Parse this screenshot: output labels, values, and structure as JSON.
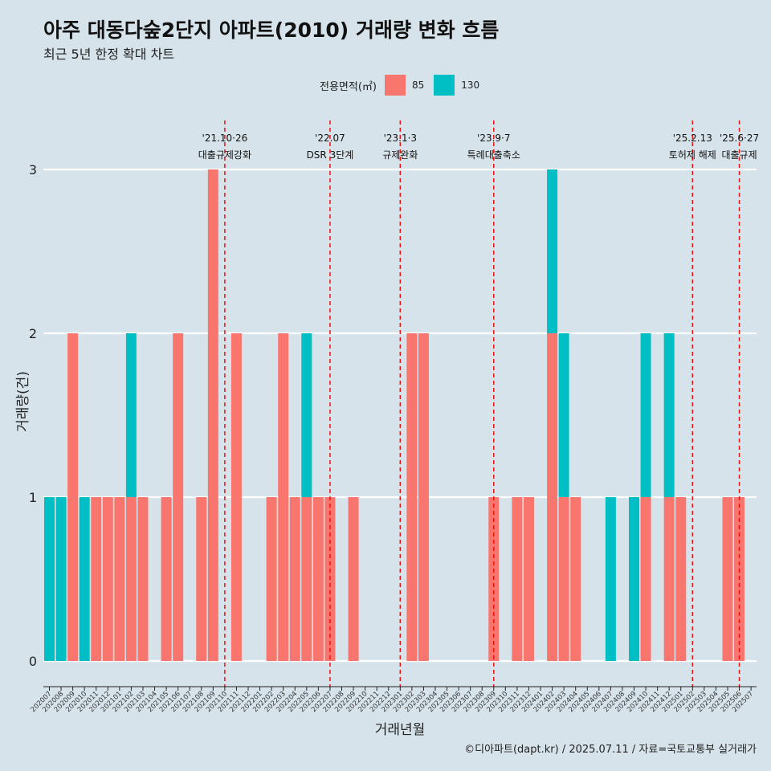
{
  "title": "아주 대동다숲2단지 아파트(2010) 거래량 변화 흐름",
  "subtitle": "최근 5년 한정 확대 차트",
  "caption": "©디아파트(dapt.kr) / 2025.07.11 / 자료=국토교통부 실거래가",
  "legend": {
    "title": "전용면적(㎡)",
    "items": [
      {
        "label": "85",
        "color": "#f8766d"
      },
      {
        "label": "130",
        "color": "#00bfc4"
      }
    ]
  },
  "chart_data": {
    "type": "bar",
    "xlabel": "거래년월",
    "ylabel": "거래량(건)",
    "ylim": [
      0,
      3
    ],
    "yticks": [
      0,
      1,
      2,
      3
    ],
    "grid": true,
    "legend_position": "top",
    "categories": [
      "202007",
      "202008",
      "202009",
      "202010",
      "202011",
      "202012",
      "202101",
      "202102",
      "202103",
      "202104",
      "202105",
      "202106",
      "202107",
      "202108",
      "202109",
      "202110",
      "202111",
      "202112",
      "202201",
      "202202",
      "202203",
      "202204",
      "202205",
      "202206",
      "202207",
      "202208",
      "202209",
      "202210",
      "202211",
      "202212",
      "202301",
      "202302",
      "202303",
      "202304",
      "202305",
      "202306",
      "202307",
      "202308",
      "202309",
      "202310",
      "202311",
      "202312",
      "202401",
      "202402",
      "202403",
      "202404",
      "202405",
      "202406",
      "202407",
      "202408",
      "202409",
      "202410",
      "202411",
      "202412",
      "202501",
      "202502",
      "202503",
      "202504",
      "202505",
      "202506",
      "202507"
    ],
    "series": [
      {
        "name": "85",
        "color": "#f8766d",
        "values": [
          0,
          0,
          2,
          0,
          1,
          1,
          1,
          1,
          1,
          0,
          1,
          2,
          0,
          1,
          3,
          0,
          2,
          0,
          0,
          1,
          2,
          1,
          1,
          1,
          1,
          0,
          1,
          0,
          0,
          0,
          0,
          2,
          2,
          0,
          0,
          0,
          0,
          0,
          1,
          0,
          1,
          1,
          0,
          2,
          1,
          1,
          0,
          0,
          0,
          0,
          0,
          1,
          0,
          1,
          1,
          0,
          0,
          0,
          1,
          1,
          0
        ]
      },
      {
        "name": "130",
        "color": "#00bfc4",
        "values": [
          1,
          1,
          0,
          1,
          0,
          0,
          0,
          1,
          0,
          0,
          0,
          0,
          0,
          0,
          0,
          0,
          0,
          0,
          0,
          0,
          0,
          0,
          1,
          0,
          0,
          0,
          0,
          0,
          0,
          0,
          0,
          0,
          0,
          0,
          0,
          0,
          0,
          0,
          0,
          0,
          0,
          0,
          0,
          1,
          1,
          0,
          0,
          0,
          1,
          0,
          1,
          1,
          0,
          1,
          0,
          0,
          0,
          0,
          0,
          0,
          0
        ]
      }
    ],
    "events": [
      {
        "month": "202110",
        "date": "'21.10·26",
        "label": "대출규제강화"
      },
      {
        "month": "202207",
        "date": "'22.07",
        "label": "DSR 3단계"
      },
      {
        "month": "202301",
        "date": "'23.1·3",
        "label": "규제완화"
      },
      {
        "month": "202309",
        "date": "'23.9·7",
        "label": "특례대출축소"
      },
      {
        "month": "202502",
        "date": "'25.2.13",
        "label": "토허제 해제"
      },
      {
        "month": "202506",
        "date": "'25.6·27",
        "label": "대출규제"
      }
    ],
    "event_line_color": "#ee1111"
  }
}
